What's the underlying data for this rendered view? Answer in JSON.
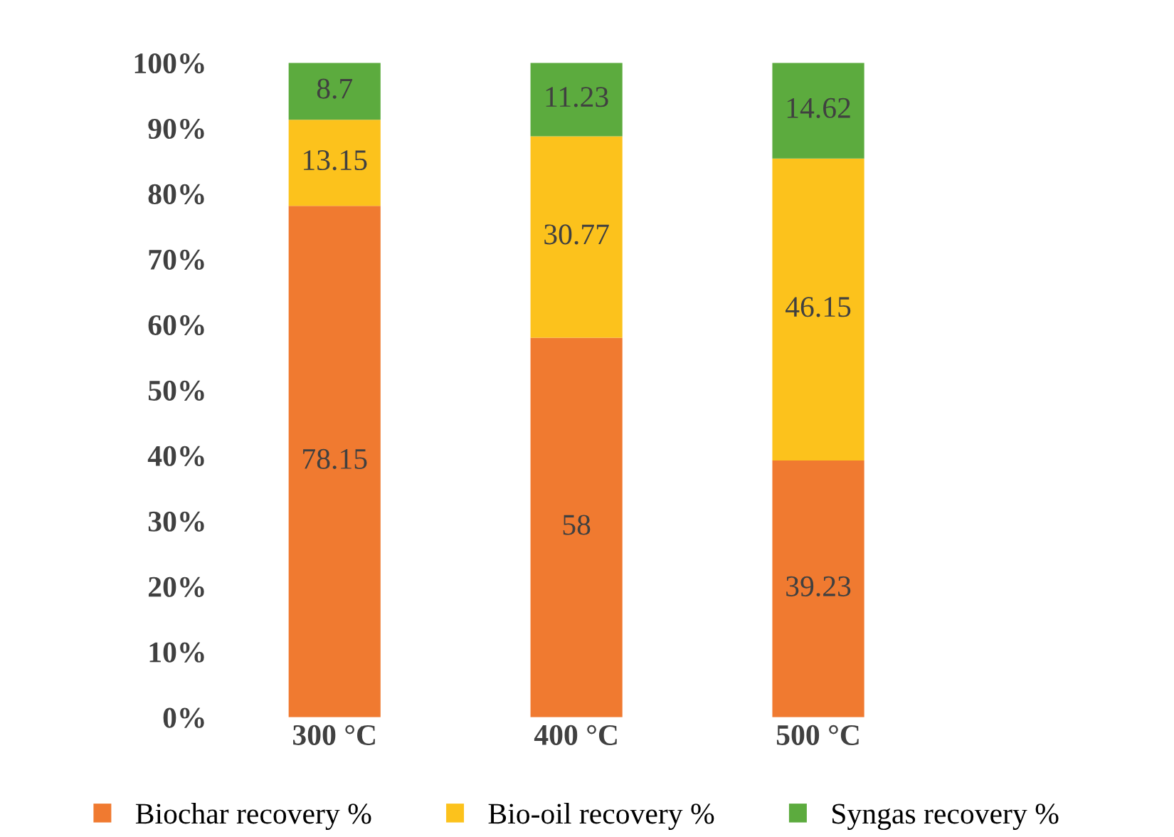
{
  "chart_data": {
    "type": "bar",
    "stacked": true,
    "categories": [
      "300 °C",
      "400 °C",
      "500 °C"
    ],
    "series": [
      {
        "name": "Biochar recovery %",
        "color": "#f07a30",
        "values": [
          78.15,
          58,
          39.23
        ]
      },
      {
        "name": "Bio-oil recovery %",
        "color": "#fcc21c",
        "values": [
          13.15,
          30.77,
          46.15
        ]
      },
      {
        "name": "Syngas recovery %",
        "color": "#5cab3e",
        "values": [
          8.7,
          11.23,
          14.62
        ]
      }
    ],
    "ylim": [
      0,
      100
    ],
    "yticks": [
      {
        "value": 0,
        "label": "0%"
      },
      {
        "value": 10,
        "label": "10%"
      },
      {
        "value": 20,
        "label": "20%"
      },
      {
        "value": 30,
        "label": "30%"
      },
      {
        "value": 40,
        "label": "40%"
      },
      {
        "value": 50,
        "label": "50%"
      },
      {
        "value": 60,
        "label": "60%"
      },
      {
        "value": 70,
        "label": "70%"
      },
      {
        "value": 80,
        "label": "80%"
      },
      {
        "value": 90,
        "label": "90%"
      },
      {
        "value": 100,
        "label": "100%"
      }
    ],
    "data_labels": true,
    "grid": false,
    "legend": "bottom"
  }
}
